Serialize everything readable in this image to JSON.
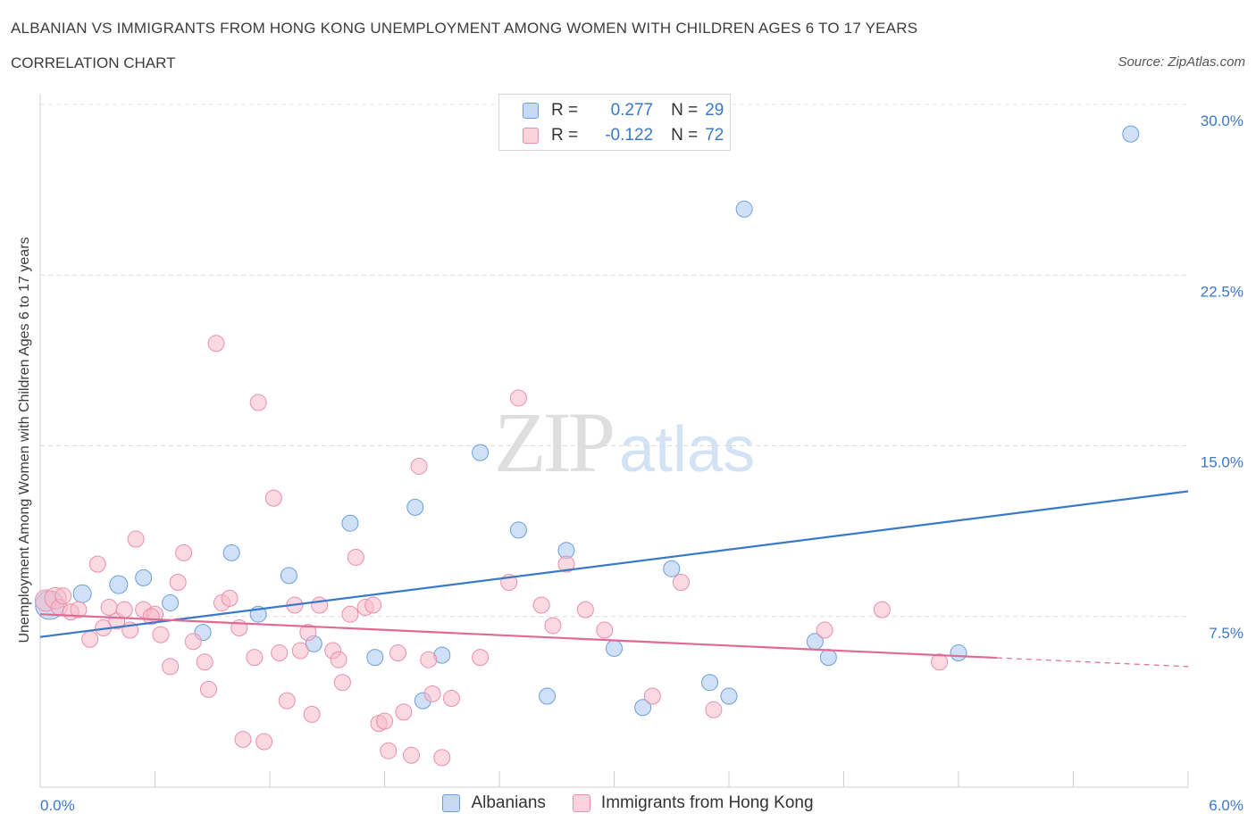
{
  "title": "ALBANIAN VS IMMIGRANTS FROM HONG KONG UNEMPLOYMENT AMONG WOMEN WITH CHILDREN AGES 6 TO 17 YEARS",
  "subtitle": "CORRELATION CHART",
  "source": "Source: ZipAtlas.com",
  "watermark": {
    "zip": "ZIP",
    "atlas": "atlas"
  },
  "stats": [
    {
      "r_label": "R =",
      "r_value": "0.277",
      "n_label": "N =",
      "n_value": "29",
      "color": "#a9c8f0"
    },
    {
      "r_label": "R =",
      "r_value": "-0.122",
      "n_label": "N =",
      "n_value": "72",
      "color": "#f6b9cb"
    }
  ],
  "legend": [
    {
      "label": "Albanians",
      "color": "#a9c8f0"
    },
    {
      "label": "Immigrants from Hong Kong",
      "color": "#f6b9cb"
    }
  ],
  "chart_data": {
    "type": "scatter",
    "title": "ALBANIAN VS IMMIGRANTS FROM HONG KONG UNEMPLOYMENT AMONG WOMEN WITH CHILDREN AGES 6 TO 17 YEARS",
    "xlabel": "",
    "ylabel": "Unemployment Among Women with Children Ages 6 to 17 years",
    "xlim": [
      0,
      6
    ],
    "ylim": [
      0,
      30
    ],
    "x_tick_labels": [
      "0.0%",
      "6.0%"
    ],
    "y_ticks": [
      7.5,
      15,
      22.5,
      30
    ],
    "y_tick_labels": [
      "7.5%",
      "15.0%",
      "22.5%",
      "30.0%"
    ],
    "grid": true,
    "legend_position": "bottom",
    "series": [
      {
        "name": "Albanians",
        "color": "#a9c8f0",
        "stroke": "#6a9fdc",
        "trend_color": "#3a78c9",
        "trend": {
          "x0": 0,
          "y0": 6.6,
          "x1": 6,
          "y1": 13.0,
          "dash_from": null
        },
        "points": [
          [
            0.05,
            8.0,
            16
          ],
          [
            0.22,
            8.5,
            10
          ],
          [
            0.41,
            8.9,
            10
          ],
          [
            0.54,
            9.2,
            9
          ],
          [
            0.68,
            8.1,
            9
          ],
          [
            0.85,
            6.8,
            9
          ],
          [
            1.0,
            10.3,
            9
          ],
          [
            1.14,
            7.6,
            9
          ],
          [
            1.3,
            9.3,
            9
          ],
          [
            1.43,
            6.3,
            9
          ],
          [
            1.62,
            11.6,
            9
          ],
          [
            1.75,
            5.7,
            9
          ],
          [
            1.96,
            12.3,
            9
          ],
          [
            2.0,
            3.8,
            9
          ],
          [
            2.1,
            5.8,
            9
          ],
          [
            2.3,
            14.7,
            9
          ],
          [
            2.5,
            11.3,
            9
          ],
          [
            2.65,
            4.0,
            9
          ],
          [
            2.75,
            10.4,
            9
          ],
          [
            3.0,
            6.1,
            9
          ],
          [
            3.15,
            3.5,
            9
          ],
          [
            3.3,
            9.6,
            9
          ],
          [
            3.5,
            4.6,
            9
          ],
          [
            3.6,
            4.0,
            9
          ],
          [
            3.68,
            25.4,
            9
          ],
          [
            4.05,
            6.4,
            9
          ],
          [
            4.12,
            5.7,
            9
          ],
          [
            4.8,
            5.9,
            9
          ],
          [
            5.7,
            28.7,
            9
          ]
        ]
      },
      {
        "name": "Immigrants from Hong Kong",
        "color": "#f6b9cb",
        "stroke": "#ea8fab",
        "trend_color": "#e06a93",
        "trend": {
          "x0": 0,
          "y0": 7.6,
          "x1": 6,
          "y1": 5.3,
          "dash_from": 5.0
        },
        "points": [
          [
            0.03,
            8.2,
            12
          ],
          [
            0.08,
            8.3,
            12
          ],
          [
            0.1,
            7.9,
            9
          ],
          [
            0.16,
            7.7,
            9
          ],
          [
            0.2,
            7.8,
            9
          ],
          [
            0.26,
            6.5,
            9
          ],
          [
            0.3,
            9.8,
            9
          ],
          [
            0.33,
            7.0,
            9
          ],
          [
            0.36,
            7.9,
            9
          ],
          [
            0.4,
            7.3,
            9
          ],
          [
            0.47,
            6.9,
            9
          ],
          [
            0.5,
            10.9,
            9
          ],
          [
            0.54,
            7.8,
            9
          ],
          [
            0.6,
            7.6,
            9
          ],
          [
            0.63,
            6.7,
            9
          ],
          [
            0.68,
            5.3,
            9
          ],
          [
            0.72,
            9.0,
            9
          ],
          [
            0.75,
            10.3,
            9
          ],
          [
            0.8,
            6.4,
            9
          ],
          [
            0.86,
            5.5,
            9
          ],
          [
            0.88,
            4.3,
            9
          ],
          [
            0.92,
            19.5,
            9
          ],
          [
            0.95,
            8.1,
            9
          ],
          [
            0.99,
            8.3,
            9
          ],
          [
            1.04,
            7.0,
            9
          ],
          [
            1.06,
            2.1,
            9
          ],
          [
            1.12,
            5.7,
            9
          ],
          [
            1.14,
            16.9,
            9
          ],
          [
            1.17,
            2.0,
            9
          ],
          [
            1.22,
            12.7,
            9
          ],
          [
            1.25,
            5.9,
            9
          ],
          [
            1.29,
            3.8,
            9
          ],
          [
            1.33,
            8.0,
            9
          ],
          [
            1.36,
            6.0,
            9
          ],
          [
            1.4,
            6.8,
            9
          ],
          [
            1.42,
            3.2,
            9
          ],
          [
            1.46,
            8.0,
            9
          ],
          [
            1.53,
            6.0,
            9
          ],
          [
            1.56,
            5.6,
            9
          ],
          [
            1.58,
            4.6,
            9
          ],
          [
            1.62,
            7.6,
            9
          ],
          [
            1.65,
            10.1,
            9
          ],
          [
            1.7,
            7.9,
            9
          ],
          [
            1.74,
            8.0,
            9
          ],
          [
            1.77,
            2.8,
            9
          ],
          [
            1.8,
            2.9,
            9
          ],
          [
            1.82,
            1.6,
            9
          ],
          [
            1.87,
            5.9,
            9
          ],
          [
            1.9,
            3.3,
            9
          ],
          [
            1.94,
            1.4,
            9
          ],
          [
            1.98,
            14.1,
            9
          ],
          [
            2.03,
            5.6,
            9
          ],
          [
            2.05,
            4.1,
            9
          ],
          [
            2.1,
            1.3,
            9
          ],
          [
            2.15,
            3.9,
            9
          ],
          [
            2.3,
            5.7,
            9
          ],
          [
            2.45,
            9.0,
            9
          ],
          [
            2.5,
            17.1,
            9
          ],
          [
            2.62,
            8.0,
            9
          ],
          [
            2.68,
            7.1,
            9
          ],
          [
            2.75,
            9.8,
            9
          ],
          [
            2.85,
            7.8,
            9
          ],
          [
            2.95,
            6.9,
            9
          ],
          [
            3.2,
            4.0,
            9
          ],
          [
            3.35,
            9.0,
            9
          ],
          [
            3.52,
            3.4,
            9
          ],
          [
            4.1,
            6.9,
            9
          ],
          [
            4.4,
            7.8,
            9
          ],
          [
            4.7,
            5.5,
            9
          ],
          [
            0.12,
            8.4,
            9
          ],
          [
            0.44,
            7.8,
            9
          ],
          [
            0.58,
            7.5,
            9
          ]
        ]
      }
    ]
  }
}
